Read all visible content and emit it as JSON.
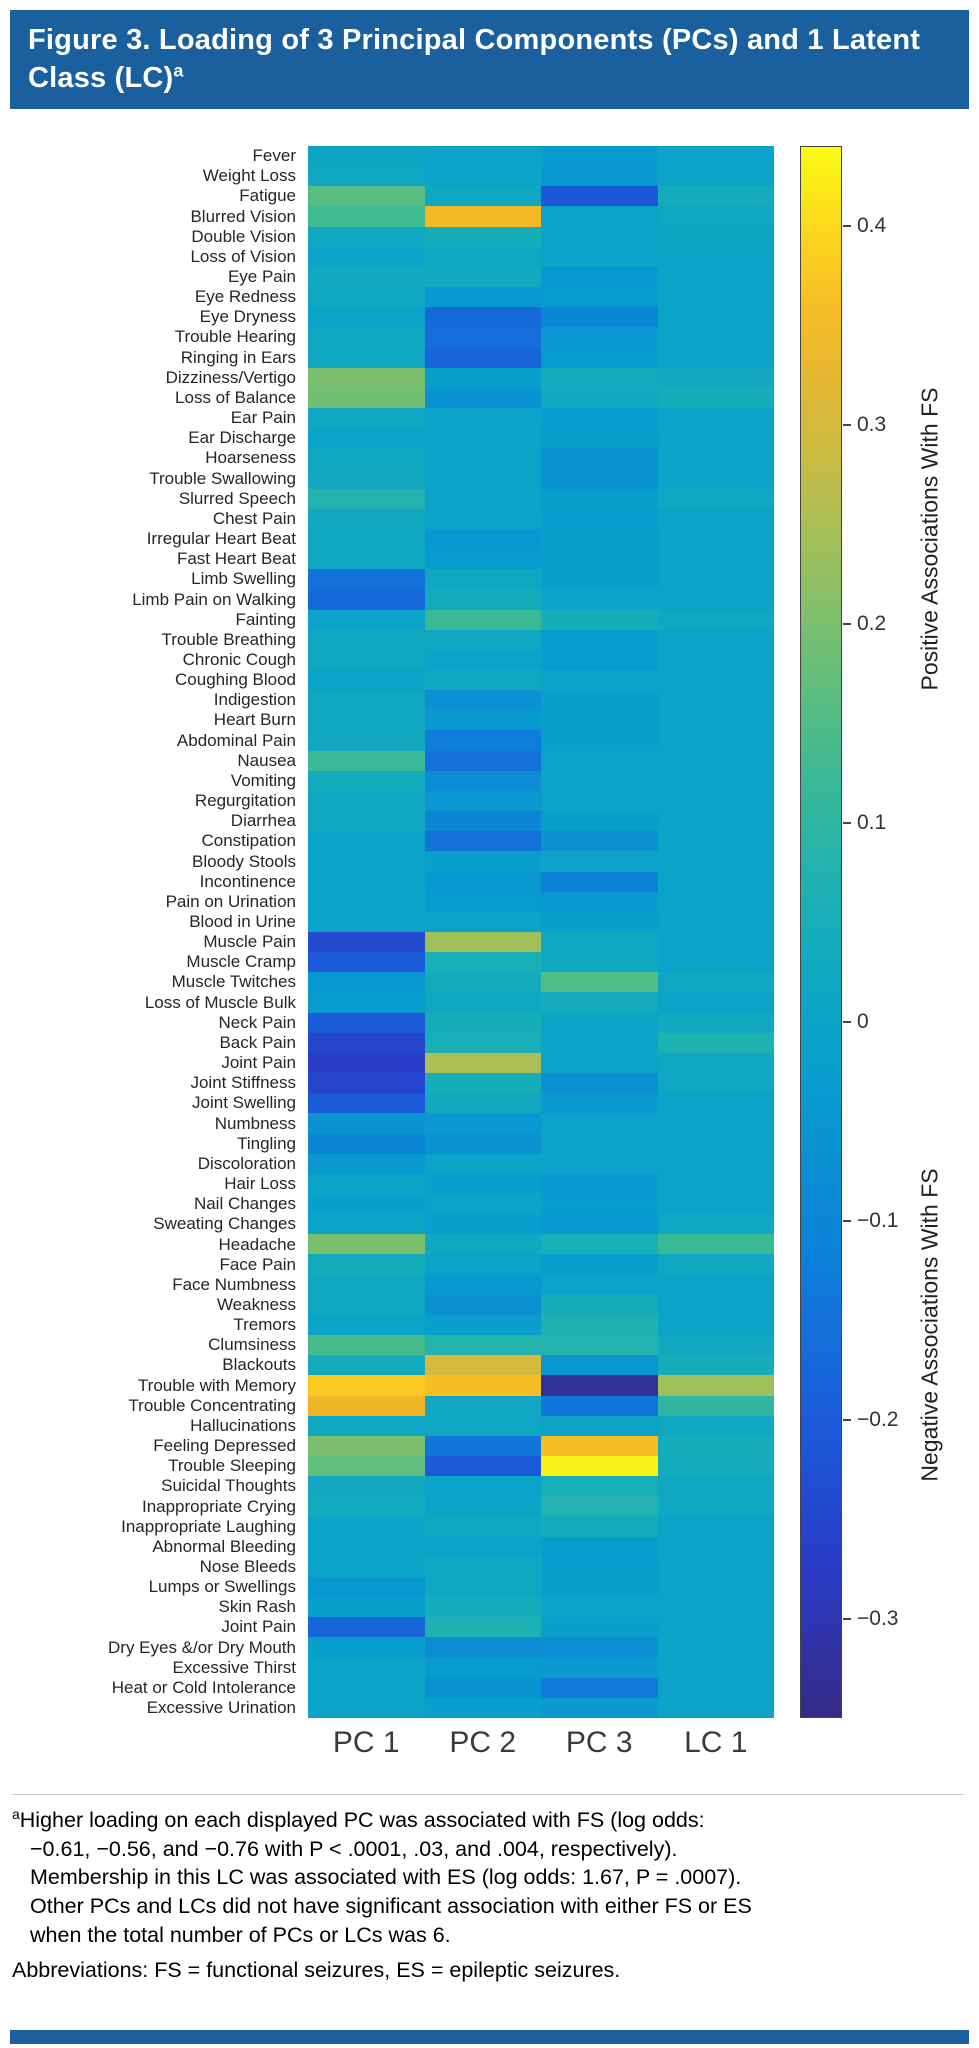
{
  "figure": {
    "title": "Figure 3. Loading of 3 Principal Components (PCs) and 1 Latent Class (LC)",
    "title_superscript": "a"
  },
  "chart_data": {
    "type": "heatmap",
    "title": "Loading of 3 Principal Components (PCs) and 1 Latent Class (LC)",
    "columns": [
      "PC 1",
      "PC 2",
      "PC 3",
      "LC 1"
    ],
    "rows": [
      "Fever",
      "Weight Loss",
      "Fatigue",
      "Blurred Vision",
      "Double Vision",
      "Loss of Vision",
      "Eye Pain",
      "Eye Redness",
      "Eye Dryness",
      "Trouble Hearing",
      "Ringing in Ears",
      "Dizziness/Vertigo",
      "Loss of Balance",
      "Ear Pain",
      "Ear Discharge",
      "Hoarseness",
      "Trouble Swallowing",
      "Slurred Speech",
      "Chest Pain",
      "Irregular Heart Beat",
      "Fast Heart Beat",
      "Limb Swelling",
      "Limb Pain on Walking",
      "Fainting",
      "Trouble Breathing",
      "Chronic Cough",
      "Coughing Blood",
      "Indigestion",
      "Heart Burn",
      "Abdominal Pain",
      "Nausea",
      "Vomiting",
      "Regurgitation",
      "Diarrhea",
      "Constipation",
      "Bloody Stools",
      "Incontinence",
      "Pain on Urination",
      "Blood in Urine",
      "Muscle Pain",
      "Muscle Cramp",
      "Muscle Twitches",
      "Loss of Muscle Bulk",
      "Neck Pain",
      "Back Pain",
      "Joint Pain",
      "Joint Stiffness",
      "Joint Swelling",
      "Numbness",
      "Tingling",
      "Discoloration",
      "Hair Loss",
      "Nail Changes",
      "Sweating Changes",
      "Headache",
      "Face Pain",
      "Face Numbness",
      "Weakness",
      "Tremors",
      "Clumsiness",
      "Blackouts",
      "Trouble with Memory",
      "Trouble Concentrating",
      "Hallucinations",
      "Feeling Depressed",
      "Trouble Sleeping",
      "Suicidal Thoughts",
      "Inappropriate Crying",
      "Inappropriate Laughing",
      "Abnormal Bleeding",
      "Nose Bleeds",
      "Lumps or Swellings",
      "Skin Rash",
      "Joint Pain",
      "Dry Eyes &/or Dry Mouth",
      "Excessive Thirst",
      "Heat or Cold Intolerance",
      "Excessive Urination"
    ],
    "values": [
      [
        0.01,
        0.0,
        -0.03,
        0.0
      ],
      [
        0.02,
        0.0,
        -0.05,
        0.0
      ],
      [
        0.16,
        0.02,
        -0.21,
        0.04
      ],
      [
        0.13,
        0.35,
        0.0,
        0.02
      ],
      [
        0.02,
        0.05,
        0.0,
        0.01
      ],
      [
        0.0,
        0.02,
        0.0,
        0.0
      ],
      [
        0.03,
        0.03,
        -0.05,
        0.0
      ],
      [
        0.02,
        -0.04,
        -0.03,
        0.0
      ],
      [
        0.0,
        -0.17,
        -0.1,
        0.0
      ],
      [
        0.02,
        -0.16,
        -0.04,
        0.0
      ],
      [
        0.02,
        -0.18,
        -0.03,
        0.0
      ],
      [
        0.2,
        -0.02,
        0.04,
        0.03
      ],
      [
        0.19,
        -0.06,
        0.03,
        0.05
      ],
      [
        0.02,
        0.0,
        -0.03,
        0.0
      ],
      [
        0.0,
        0.0,
        -0.02,
        0.0
      ],
      [
        0.02,
        0.0,
        -0.06,
        0.0
      ],
      [
        0.03,
        0.0,
        -0.06,
        0.0
      ],
      [
        0.08,
        0.0,
        -0.02,
        0.02
      ],
      [
        0.03,
        0.0,
        -0.03,
        0.0
      ],
      [
        0.02,
        -0.05,
        -0.02,
        0.0
      ],
      [
        0.02,
        -0.03,
        -0.02,
        0.0
      ],
      [
        -0.15,
        0.02,
        -0.02,
        0.0
      ],
      [
        -0.17,
        0.04,
        0.0,
        0.0
      ],
      [
        0.0,
        0.12,
        0.05,
        0.02
      ],
      [
        0.02,
        0.02,
        -0.03,
        0.0
      ],
      [
        0.02,
        0.0,
        -0.03,
        0.0
      ],
      [
        0.0,
        0.02,
        0.0,
        0.0
      ],
      [
        0.02,
        -0.07,
        -0.02,
        0.0
      ],
      [
        0.02,
        -0.04,
        -0.02,
        0.0
      ],
      [
        0.03,
        -0.12,
        -0.02,
        0.0
      ],
      [
        0.12,
        -0.15,
        0.0,
        0.0
      ],
      [
        0.04,
        -0.08,
        0.0,
        0.0
      ],
      [
        0.02,
        -0.04,
        0.0,
        0.0
      ],
      [
        0.02,
        -0.1,
        -0.02,
        0.0
      ],
      [
        0.0,
        -0.15,
        -0.07,
        0.0
      ],
      [
        0.0,
        -0.02,
        0.0,
        0.0
      ],
      [
        0.0,
        -0.04,
        -0.12,
        0.0
      ],
      [
        0.0,
        -0.03,
        -0.04,
        0.0
      ],
      [
        0.0,
        0.0,
        -0.02,
        0.0
      ],
      [
        -0.24,
        0.24,
        0.02,
        0.0
      ],
      [
        -0.2,
        0.06,
        0.02,
        0.0
      ],
      [
        -0.04,
        0.04,
        0.15,
        0.02
      ],
      [
        -0.03,
        0.02,
        0.04,
        0.0
      ],
      [
        -0.2,
        0.05,
        0.0,
        0.03
      ],
      [
        -0.25,
        0.06,
        0.0,
        0.07
      ],
      [
        -0.27,
        0.25,
        0.0,
        0.02
      ],
      [
        -0.25,
        0.05,
        -0.07,
        0.02
      ],
      [
        -0.2,
        0.03,
        -0.04,
        0.0
      ],
      [
        -0.06,
        -0.04,
        0.0,
        0.0
      ],
      [
        -0.1,
        -0.06,
        0.0,
        0.0
      ],
      [
        -0.04,
        0.0,
        0.0,
        0.0
      ],
      [
        0.0,
        -0.02,
        -0.04,
        0.0
      ],
      [
        -0.02,
        0.0,
        -0.03,
        0.0
      ],
      [
        0.0,
        -0.02,
        -0.05,
        0.02
      ],
      [
        0.2,
        0.02,
        0.06,
        0.12
      ],
      [
        0.04,
        0.0,
        -0.02,
        0.02
      ],
      [
        0.02,
        -0.04,
        0.0,
        0.0
      ],
      [
        0.02,
        -0.07,
        0.05,
        0.0
      ],
      [
        0.0,
        -0.02,
        0.07,
        0.0
      ],
      [
        0.14,
        0.08,
        0.08,
        0.03
      ],
      [
        0.04,
        0.3,
        -0.05,
        0.05
      ],
      [
        0.38,
        0.36,
        -0.33,
        0.24
      ],
      [
        0.34,
        0.02,
        -0.14,
        0.1
      ],
      [
        0.02,
        0.02,
        0.0,
        0.02
      ],
      [
        0.2,
        -0.14,
        0.36,
        0.05
      ],
      [
        0.17,
        -0.2,
        0.43,
        0.04
      ],
      [
        0.03,
        0.0,
        0.06,
        0.02
      ],
      [
        0.04,
        0.0,
        0.08,
        0.02
      ],
      [
        0.0,
        0.02,
        0.04,
        0.0
      ],
      [
        0.0,
        0.0,
        -0.03,
        0.0
      ],
      [
        0.0,
        0.02,
        -0.02,
        0.0
      ],
      [
        -0.05,
        0.02,
        -0.02,
        0.0
      ],
      [
        -0.02,
        0.04,
        0.0,
        0.0
      ],
      [
        -0.18,
        0.07,
        -0.02,
        0.0
      ],
      [
        -0.02,
        -0.08,
        -0.07,
        0.0
      ],
      [
        0.0,
        -0.03,
        -0.04,
        0.0
      ],
      [
        0.0,
        -0.06,
        -0.13,
        0.0
      ],
      [
        0.0,
        -0.02,
        -0.04,
        0.0
      ]
    ],
    "vmin": -0.35,
    "vmax": 0.44,
    "colormap": "parula",
    "grid": false,
    "colorbar": {
      "ticks": [
        0.4,
        0.3,
        0.2,
        0.1,
        0,
        -0.1,
        -0.2,
        -0.3
      ],
      "tick_labels": [
        "0.4",
        "0.3",
        "0.2",
        "0.1",
        "0",
        "−0.1",
        "−0.2",
        "−0.3"
      ],
      "label_positive": "Positive Associations With FS",
      "label_negative": "Negative Associations With FS"
    }
  },
  "footnote": {
    "marker": "a",
    "lines": [
      "Higher loading on each displayed PC was associated with FS (log odds:",
      "−0.61, −0.56, and −0.76 with P < .0001, .03, and .004, respectively).",
      "Membership in this LC was associated with ES (log odds: 1.67, P = .0007).",
      "Other PCs and LCs did not have significant association with either FS or ES",
      "when the total number of PCs or LCs was 6."
    ],
    "abbreviations": "Abbreviations: FS = functional seizures, ES = epileptic seizures."
  },
  "colors": {
    "banner": "#1a5f9e",
    "footer_bar": "#1a5f9e"
  }
}
